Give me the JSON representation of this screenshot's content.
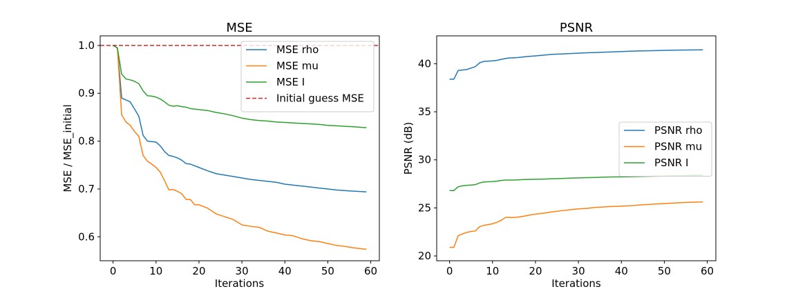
{
  "chart_data": [
    {
      "type": "line",
      "title": "MSE",
      "xlabel": "Iterations",
      "ylabel": "MSE / MSE_initial",
      "xlim": [
        -3,
        62
      ],
      "ylim": [
        0.55,
        1.02
      ],
      "xticks": [
        0,
        10,
        20,
        30,
        40,
        50,
        60
      ],
      "yticks": [
        0.6,
        0.7,
        0.8,
        0.9,
        1.0
      ],
      "ytick_labels": [
        "0.6",
        "0.7",
        "0.8",
        "0.9",
        "1.0"
      ],
      "legend_position": "upper-right",
      "reference_line": {
        "name": "Initial guess MSE",
        "y": 1.0,
        "color": "#d62728",
        "style": "dashed"
      },
      "series": [
        {
          "name": "MSE rho",
          "color": "#1f77b4",
          "x": [
            0,
            1,
            2,
            4,
            6,
            7,
            8,
            10,
            11,
            12,
            13,
            14,
            15,
            16,
            17,
            18,
            20,
            22,
            24,
            26,
            28,
            30,
            32,
            34,
            36,
            38,
            40,
            42,
            44,
            46,
            48,
            50,
            52,
            55,
            59
          ],
          "y": [
            1.0,
            0.995,
            0.89,
            0.882,
            0.852,
            0.812,
            0.8,
            0.798,
            0.79,
            0.778,
            0.77,
            0.768,
            0.765,
            0.76,
            0.753,
            0.752,
            0.745,
            0.738,
            0.732,
            0.729,
            0.726,
            0.723,
            0.72,
            0.718,
            0.716,
            0.714,
            0.71,
            0.708,
            0.706,
            0.704,
            0.702,
            0.7,
            0.698,
            0.696,
            0.694
          ]
        },
        {
          "name": "MSE mu",
          "color": "#ff7f0e",
          "x": [
            0,
            1,
            2,
            3,
            4,
            5,
            6,
            7,
            8,
            9,
            10,
            11,
            12,
            13,
            14,
            15,
            16,
            17,
            18,
            19,
            20,
            22,
            24,
            26,
            28,
            30,
            32,
            34,
            36,
            38,
            40,
            42,
            44,
            46,
            48,
            50,
            52,
            54,
            56,
            59
          ],
          "y": [
            1.0,
            0.995,
            0.855,
            0.84,
            0.833,
            0.82,
            0.81,
            0.77,
            0.758,
            0.752,
            0.745,
            0.735,
            0.717,
            0.698,
            0.699,
            0.695,
            0.69,
            0.678,
            0.678,
            0.667,
            0.667,
            0.66,
            0.648,
            0.642,
            0.636,
            0.625,
            0.622,
            0.62,
            0.612,
            0.608,
            0.604,
            0.602,
            0.596,
            0.592,
            0.59,
            0.586,
            0.582,
            0.58,
            0.577,
            0.574
          ]
        },
        {
          "name": "MSE I",
          "color": "#2ca02c",
          "x": [
            0,
            1,
            2,
            3,
            4,
            5,
            6,
            7,
            8,
            9,
            10,
            11,
            12,
            13,
            14,
            15,
            16,
            17,
            18,
            20,
            22,
            24,
            26,
            28,
            30,
            32,
            34,
            36,
            38,
            40,
            42,
            44,
            46,
            48,
            50,
            52,
            54,
            56,
            59
          ],
          "y": [
            1.0,
            0.995,
            0.94,
            0.93,
            0.928,
            0.925,
            0.92,
            0.905,
            0.895,
            0.894,
            0.892,
            0.888,
            0.882,
            0.875,
            0.873,
            0.874,
            0.872,
            0.871,
            0.868,
            0.866,
            0.864,
            0.86,
            0.857,
            0.853,
            0.848,
            0.845,
            0.843,
            0.842,
            0.84,
            0.839,
            0.838,
            0.837,
            0.836,
            0.835,
            0.833,
            0.832,
            0.831,
            0.83,
            0.828
          ]
        }
      ]
    },
    {
      "type": "line",
      "title": "PSNR",
      "xlabel": "Iterations",
      "ylabel": "PSNR (dB)",
      "xlim": [
        -3,
        62
      ],
      "ylim": [
        19.5,
        42.9
      ],
      "xticks": [
        0,
        10,
        20,
        30,
        40,
        50,
        60
      ],
      "yticks": [
        20,
        25,
        30,
        35,
        40
      ],
      "ytick_labels": [
        "20",
        "25",
        "30",
        "35",
        "40"
      ],
      "legend_position": "center-right",
      "series": [
        {
          "name": "PSNR rho",
          "color": "#1f77b4",
          "x": [
            0,
            1,
            2,
            3,
            4,
            5,
            6,
            7,
            8,
            9,
            10,
            11,
            12,
            13,
            14,
            15,
            16,
            17,
            18,
            20,
            22,
            24,
            26,
            28,
            30,
            32,
            34,
            36,
            38,
            40,
            42,
            44,
            46,
            48,
            50,
            52,
            55,
            59
          ],
          "y": [
            38.4,
            38.4,
            39.3,
            39.35,
            39.4,
            39.55,
            39.7,
            40.1,
            40.25,
            40.27,
            40.3,
            40.35,
            40.45,
            40.55,
            40.6,
            40.62,
            40.65,
            40.7,
            40.75,
            40.82,
            40.9,
            40.98,
            41.02,
            41.06,
            41.1,
            41.14,
            41.17,
            41.2,
            41.23,
            41.27,
            41.3,
            41.33,
            41.35,
            41.37,
            41.39,
            41.41,
            41.43,
            41.45
          ]
        },
        {
          "name": "PSNR mu",
          "color": "#ff7f0e",
          "x": [
            0,
            1,
            2,
            3,
            4,
            5,
            6,
            7,
            8,
            9,
            10,
            11,
            12,
            13,
            14,
            15,
            16,
            17,
            18,
            20,
            22,
            24,
            26,
            28,
            30,
            32,
            34,
            36,
            38,
            40,
            42,
            44,
            46,
            48,
            50,
            52,
            54,
            56,
            59
          ],
          "y": [
            20.9,
            20.9,
            22.1,
            22.3,
            22.45,
            22.55,
            22.6,
            23.05,
            23.2,
            23.25,
            23.35,
            23.5,
            23.7,
            24.0,
            24.0,
            24.0,
            24.05,
            24.1,
            24.2,
            24.35,
            24.45,
            24.6,
            24.7,
            24.8,
            24.9,
            24.95,
            25.05,
            25.1,
            25.15,
            25.18,
            25.22,
            25.3,
            25.35,
            25.4,
            25.45,
            25.5,
            25.55,
            25.58,
            25.62
          ]
        },
        {
          "name": "PSNR I",
          "color": "#2ca02c",
          "x": [
            0,
            1,
            2,
            3,
            4,
            5,
            6,
            7,
            8,
            9,
            10,
            11,
            12,
            13,
            14,
            15,
            16,
            17,
            18,
            20,
            22,
            24,
            26,
            28,
            30,
            32,
            34,
            36,
            38,
            40,
            42,
            44,
            46,
            48,
            50,
            52,
            54,
            56,
            59
          ],
          "y": [
            26.8,
            26.8,
            27.2,
            27.3,
            27.35,
            27.38,
            27.42,
            27.6,
            27.7,
            27.72,
            27.74,
            27.78,
            27.85,
            27.9,
            27.9,
            27.9,
            27.92,
            27.94,
            27.96,
            27.98,
            28.0,
            28.03,
            28.06,
            28.1,
            28.12,
            28.15,
            28.17,
            28.2,
            28.22,
            28.23,
            28.25,
            28.27,
            28.28,
            28.3,
            28.31,
            28.33,
            28.35,
            28.37,
            28.4
          ]
        }
      ]
    }
  ]
}
